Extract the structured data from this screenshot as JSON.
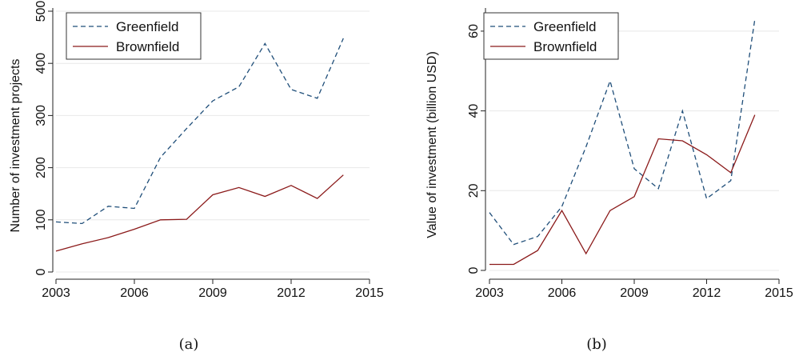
{
  "chart_data": [
    {
      "type": "line",
      "panel_label": "(a)",
      "xlabel": "",
      "ylabel": "Number of investment projects",
      "x": [
        2003,
        2004,
        2005,
        2006,
        2007,
        2008,
        2009,
        2010,
        2011,
        2012,
        2013,
        2014
      ],
      "xlim": [
        2003,
        2015
      ],
      "xticks": [
        "2003",
        "2006",
        "2009",
        "2012",
        "2015"
      ],
      "ylim": [
        0,
        500
      ],
      "yticks": [
        "0",
        "100",
        "200",
        "300",
        "400",
        "500"
      ],
      "grid": true,
      "legend_position": "top-left",
      "series": [
        {
          "name": "Greenfield",
          "style": "dashed",
          "color": "#1f4e79",
          "values": [
            96,
            93,
            126,
            122,
            220,
            275,
            328,
            355,
            438,
            350,
            333,
            448
          ]
        },
        {
          "name": "Brownfield",
          "style": "solid",
          "color": "#8b1a1a",
          "values": [
            40,
            54,
            66,
            82,
            100,
            101,
            148,
            162,
            145,
            166,
            141,
            186
          ]
        }
      ]
    },
    {
      "type": "line",
      "panel_label": "(b)",
      "xlabel": "",
      "ylabel": "Value of investment (billion USD)",
      "x": [
        2003,
        2004,
        2005,
        2006,
        2007,
        2008,
        2009,
        2010,
        2011,
        2012,
        2013,
        2014
      ],
      "xlim": [
        2003,
        2015
      ],
      "xticks": [
        "2003",
        "2006",
        "2009",
        "2012",
        "2015"
      ],
      "ylim": [
        0,
        65
      ],
      "yticks": [
        "0",
        "20",
        "40",
        "60"
      ],
      "grid": true,
      "legend_position": "top-left",
      "series": [
        {
          "name": "Greenfield",
          "style": "dashed",
          "color": "#1f4e79",
          "values": [
            14.5,
            6.5,
            8.5,
            16,
            31,
            47.5,
            25.5,
            20.5,
            40,
            18,
            22.5,
            63
          ]
        },
        {
          "name": "Brownfield",
          "style": "solid",
          "color": "#8b1a1a",
          "values": [
            1.5,
            1.5,
            5,
            15,
            4.2,
            15,
            18.5,
            33,
            32.5,
            29,
            24.5,
            39
          ]
        }
      ]
    }
  ]
}
